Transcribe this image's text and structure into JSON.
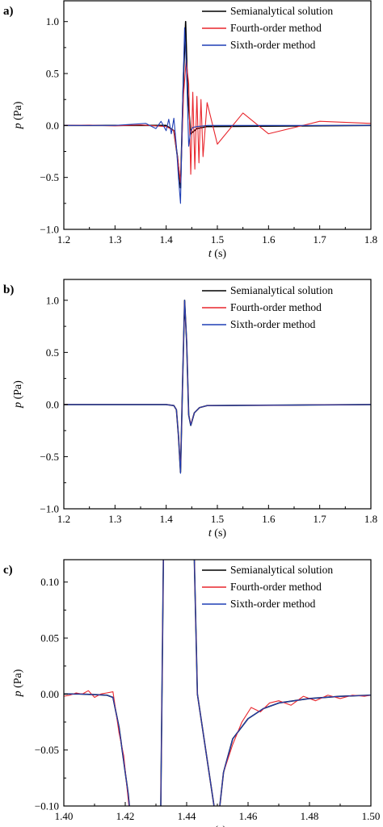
{
  "chart_data": [
    {
      "type": "line",
      "panel_label": "a)",
      "xlabel_symbol": "t",
      "xlabel_unit": "(s)",
      "ylabel_symbol": "p",
      "ylabel_unit": "(Pa)",
      "xlim": [
        1.2,
        1.8
      ],
      "ylim": [
        -1.0,
        1.2
      ],
      "xticks": [
        1.2,
        1.3,
        1.4,
        1.5,
        1.6,
        1.7,
        1.8
      ],
      "xtick_labels": [
        "1.2",
        "1.3",
        "1.4",
        "1.5",
        "1.6",
        "1.7",
        "1.8"
      ],
      "yticks": [
        -1.0,
        -0.5,
        0.0,
        0.5,
        1.0
      ],
      "ytick_labels": [
        "−1.0",
        "−0.5",
        "0.0",
        "0.5",
        "1.0"
      ],
      "legend_position": "top-right",
      "grid": false,
      "series": [
        {
          "name": "Semianalytical solution",
          "color": "#000000",
          "x": [
            1.2,
            1.4,
            1.415,
            1.422,
            1.428,
            1.434,
            1.438,
            1.442,
            1.448,
            1.46,
            1.48,
            1.8
          ],
          "y": [
            0.0,
            0.0,
            -0.05,
            -0.3,
            -0.6,
            0.5,
            1.0,
            0.3,
            -0.08,
            -0.03,
            -0.01,
            0.0
          ]
        },
        {
          "name": "Fourth-order method",
          "color": "#e8262d",
          "x": [
            1.2,
            1.25,
            1.3,
            1.35,
            1.4,
            1.415,
            1.422,
            1.428,
            1.434,
            1.439,
            1.444,
            1.448,
            1.452,
            1.456,
            1.46,
            1.464,
            1.468,
            1.472,
            1.48,
            1.5,
            1.55,
            1.6,
            1.7,
            1.8
          ],
          "y": [
            0.0,
            0.003,
            -0.004,
            0.005,
            -0.01,
            -0.05,
            -0.3,
            -0.55,
            0.3,
            0.63,
            0.4,
            -0.47,
            0.32,
            -0.42,
            0.28,
            -0.36,
            0.25,
            -0.3,
            0.22,
            -0.18,
            0.12,
            -0.08,
            0.04,
            0.02
          ]
        },
        {
          "name": "Sixth-order method",
          "color": "#1f3fb5",
          "x": [
            1.2,
            1.3,
            1.36,
            1.38,
            1.39,
            1.4,
            1.405,
            1.41,
            1.415,
            1.42,
            1.424,
            1.428,
            1.432,
            1.436,
            1.44,
            1.444,
            1.448,
            1.452,
            1.46,
            1.48,
            1.8
          ],
          "y": [
            0.0,
            0.0,
            0.02,
            -0.03,
            0.04,
            -0.05,
            0.06,
            -0.08,
            0.07,
            -0.2,
            -0.5,
            -0.75,
            0.2,
            0.94,
            0.5,
            -0.2,
            -0.05,
            -0.02,
            -0.01,
            0.0,
            0.0
          ]
        }
      ]
    },
    {
      "type": "line",
      "panel_label": "b)",
      "xlabel_symbol": "t",
      "xlabel_unit": "(s)",
      "ylabel_symbol": "p",
      "ylabel_unit": "(Pa)",
      "xlim": [
        1.2,
        1.8
      ],
      "ylim": [
        -1.0,
        1.2
      ],
      "xticks": [
        1.2,
        1.3,
        1.4,
        1.5,
        1.6,
        1.7,
        1.8
      ],
      "xtick_labels": [
        "1.2",
        "1.3",
        "1.4",
        "1.5",
        "1.6",
        "1.7",
        "1.8"
      ],
      "yticks": [
        -1.0,
        -0.5,
        0.0,
        0.5,
        1.0
      ],
      "ytick_labels": [
        "−1.0",
        "−0.5",
        "0.0",
        "0.5",
        "1.0"
      ],
      "legend_position": "top-right",
      "grid": false,
      "series": [
        {
          "name": "Semianalytical solution",
          "color": "#000000",
          "x": [
            1.2,
            1.4,
            1.415,
            1.42,
            1.424,
            1.428,
            1.432,
            1.436,
            1.44,
            1.444,
            1.448,
            1.455,
            1.465,
            1.48,
            1.8
          ],
          "y": [
            0.0,
            0.0,
            -0.01,
            -0.05,
            -0.3,
            -0.65,
            0.2,
            1.0,
            0.6,
            -0.1,
            -0.2,
            -0.08,
            -0.03,
            -0.01,
            0.0
          ]
        },
        {
          "name": "Fourth-order method",
          "color": "#e8262d",
          "x": [
            1.2,
            1.4,
            1.415,
            1.42,
            1.424,
            1.428,
            1.432,
            1.436,
            1.44,
            1.444,
            1.448,
            1.455,
            1.465,
            1.48,
            1.8
          ],
          "y": [
            0.0,
            0.0,
            -0.01,
            -0.05,
            -0.3,
            -0.64,
            0.2,
            0.99,
            0.6,
            -0.1,
            -0.19,
            -0.08,
            -0.03,
            -0.01,
            0.0
          ]
        },
        {
          "name": "Sixth-order method",
          "color": "#1f3fb5",
          "x": [
            1.2,
            1.4,
            1.415,
            1.42,
            1.424,
            1.428,
            1.432,
            1.436,
            1.44,
            1.444,
            1.448,
            1.455,
            1.465,
            1.48,
            1.8
          ],
          "y": [
            0.0,
            0.0,
            -0.01,
            -0.05,
            -0.3,
            -0.66,
            0.2,
            1.0,
            0.6,
            -0.1,
            -0.2,
            -0.08,
            -0.03,
            -0.01,
            0.0
          ]
        }
      ]
    },
    {
      "type": "line",
      "panel_label": "c)",
      "xlabel_symbol": "t",
      "xlabel_unit": "(s)",
      "ylabel_symbol": "p",
      "ylabel_unit": "(Pa)",
      "xlim": [
        1.4,
        1.5
      ],
      "ylim": [
        -0.1,
        0.12
      ],
      "xticks": [
        1.4,
        1.42,
        1.44,
        1.46,
        1.48,
        1.5
      ],
      "xtick_labels": [
        "1.40",
        "1.42",
        "1.44",
        "1.46",
        "1.48",
        "1.50"
      ],
      "yticks": [
        -0.1,
        -0.05,
        0.0,
        0.05,
        0.1
      ],
      "ytick_labels": [
        "−0.10",
        "−0.05",
        "0.00",
        "0.05",
        "0.10"
      ],
      "legend_position": "top-right",
      "grid": false,
      "series": [
        {
          "name": "Semianalytical solution",
          "color": "#000000",
          "x": [
            1.4,
            1.405,
            1.41,
            1.414,
            1.416,
            1.418,
            1.4195,
            1.421,
            1.422,
            1.4315,
            1.4325,
            1.4405,
            1.4425,
            1.4435,
            1.45,
            1.452,
            1.455,
            1.46,
            1.465,
            1.47,
            1.48,
            1.49,
            1.5
          ],
          "y": [
            0.0,
            0.0,
            -0.0005,
            -0.001,
            -0.003,
            -0.03,
            -0.06,
            -0.09,
            -0.12,
            -0.12,
            0.14,
            0.14,
            0.12,
            0.0,
            -0.12,
            -0.07,
            -0.04,
            -0.022,
            -0.013,
            -0.008,
            -0.004,
            -0.002,
            -0.001
          ]
        },
        {
          "name": "Fourth-order method",
          "color": "#e8262d",
          "x": [
            1.4,
            1.402,
            1.404,
            1.406,
            1.408,
            1.41,
            1.412,
            1.414,
            1.416,
            1.418,
            1.4195,
            1.421,
            1.422,
            1.4315,
            1.4325,
            1.4405,
            1.4425,
            1.4435,
            1.45,
            1.452,
            1.455,
            1.458,
            1.461,
            1.464,
            1.467,
            1.47,
            1.474,
            1.478,
            1.482,
            1.486,
            1.49,
            1.494,
            1.498,
            1.5
          ],
          "y": [
            -0.002,
            -0.001,
            0.001,
            0.0,
            0.003,
            -0.003,
            0.0,
            0.001,
            0.002,
            -0.035,
            -0.055,
            -0.095,
            -0.12,
            -0.12,
            0.14,
            0.14,
            0.12,
            0.0,
            -0.12,
            -0.07,
            -0.045,
            -0.025,
            -0.012,
            -0.016,
            -0.008,
            -0.006,
            -0.01,
            -0.002,
            -0.006,
            -0.001,
            -0.004,
            -0.001,
            -0.002,
            -0.001
          ]
        },
        {
          "name": "Sixth-order method",
          "color": "#1f3fb5",
          "x": [
            1.4,
            1.405,
            1.41,
            1.414,
            1.416,
            1.418,
            1.4195,
            1.421,
            1.422,
            1.4315,
            1.4325,
            1.4405,
            1.4425,
            1.4435,
            1.45,
            1.452,
            1.455,
            1.46,
            1.465,
            1.47,
            1.48,
            1.49,
            1.5
          ],
          "y": [
            0.0,
            0.0,
            -0.0005,
            -0.001,
            -0.003,
            -0.03,
            -0.06,
            -0.09,
            -0.12,
            -0.12,
            0.14,
            0.14,
            0.12,
            0.0,
            -0.12,
            -0.07,
            -0.04,
            -0.022,
            -0.013,
            -0.008,
            -0.004,
            -0.002,
            -0.001
          ]
        }
      ]
    }
  ]
}
